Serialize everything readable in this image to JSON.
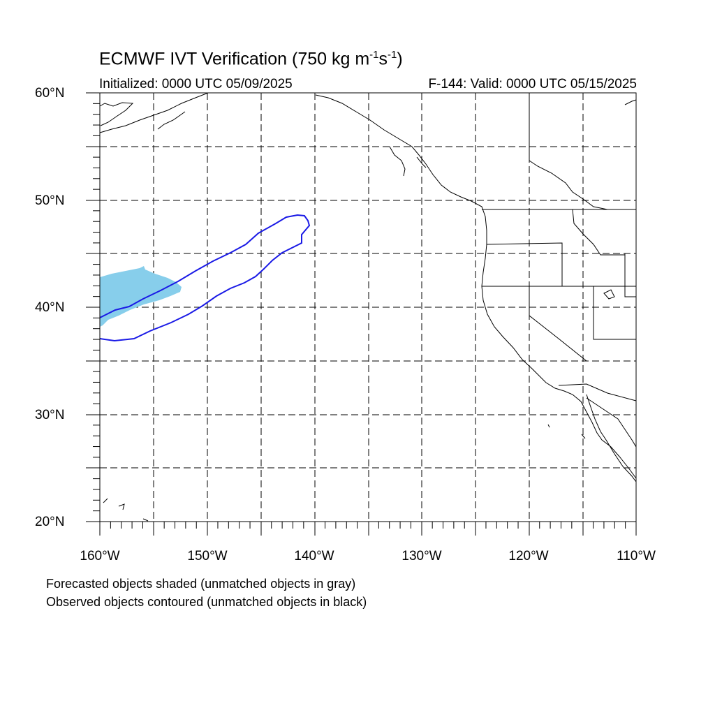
{
  "header": {
    "title_main": "ECMWF IVT Verification (750 kg m",
    "title_exp1": "-1",
    "title_mid": "s",
    "title_exp2": "-1",
    "title_end": ")",
    "initialized": "Initialized: 0000 UTC 05/09/2025",
    "valid": "F-144: Valid: 0000 UTC 05/15/2025"
  },
  "map": {
    "extent": {
      "lon_min": -160,
      "lon_max": -110,
      "lat_min": 20,
      "lat_max": 60
    },
    "grid_interval_deg": 5,
    "lat_labels": [
      "60°N",
      "50°N",
      "40°N",
      "30°N",
      "20°N"
    ],
    "lon_labels": [
      "160°W",
      "150°W",
      "140°W",
      "130°W",
      "120°W",
      "110°W"
    ],
    "colors": {
      "forecast_fill": "#87ceeb",
      "observed_contour": "#1a1ae6",
      "coastline": "#000000",
      "grid": "#000000"
    }
  },
  "legend": {
    "line1": "Forecasted objects shaded (unmatched objects in gray)",
    "line2": "Observed objects contoured (unmatched objects in black)"
  }
}
